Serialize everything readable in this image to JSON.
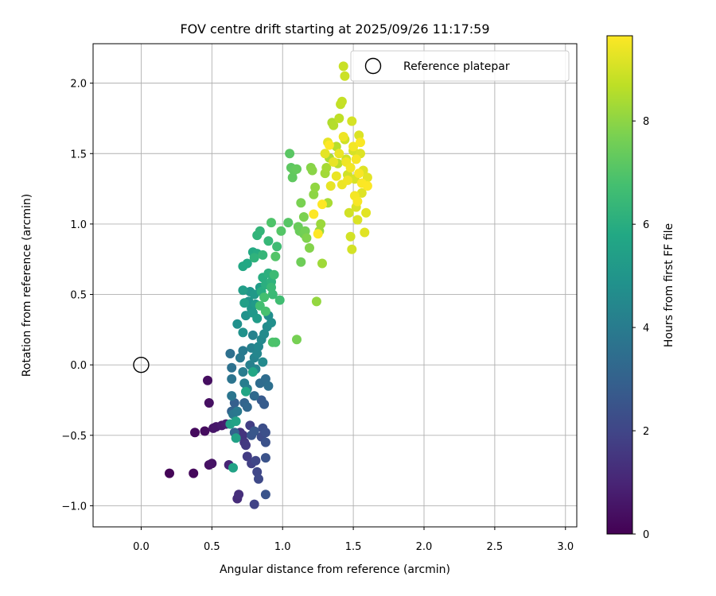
{
  "chart_data": {
    "type": "scatter",
    "title": "FOV centre drift starting at 2025/09/26 11:17:59",
    "xlabel": "Angular distance from reference (arcmin)",
    "ylabel": "Rotation from reference (arcmin)",
    "xlim": [
      -0.34,
      3.08
    ],
    "ylim": [
      -1.15,
      2.28
    ],
    "xticks": [
      0.0,
      0.5,
      1.0,
      1.5,
      2.0,
      2.5,
      3.0
    ],
    "xtick_labels": [
      "0.0",
      "0.5",
      "1.0",
      "1.5",
      "2.0",
      "2.5",
      "3.0"
    ],
    "yticks": [
      -1.0,
      -0.5,
      0.0,
      0.5,
      1.0,
      1.5,
      2.0
    ],
    "ytick_labels": [
      "−1.0",
      "−0.5",
      "0.0",
      "0.5",
      "1.0",
      "1.5",
      "2.0"
    ],
    "grid": true,
    "legend": {
      "position": "top-right",
      "entries": [
        {
          "label": "Reference platepar",
          "marker": "open-circle"
        }
      ]
    },
    "reference_point": {
      "x": 0.0,
      "y": 0.0,
      "label": "Reference platepar"
    },
    "colorbar": {
      "label": "Hours from first FF file",
      "colormap": "viridis",
      "range": [
        0,
        9.65
      ],
      "ticks": [
        0,
        2,
        4,
        6,
        8
      ],
      "tick_labels": [
        "0",
        "2",
        "4",
        "6",
        "8"
      ]
    },
    "series": [
      {
        "name": "FOV centre drift",
        "points": [
          [
            0.2,
            -0.77,
            0.1
          ],
          [
            0.37,
            -0.77,
            0.2
          ],
          [
            0.38,
            -0.48,
            0.25
          ],
          [
            0.45,
            -0.47,
            0.3
          ],
          [
            0.47,
            -0.11,
            0.35
          ],
          [
            0.48,
            -0.27,
            0.4
          ],
          [
            0.48,
            -0.71,
            0.45
          ],
          [
            0.5,
            -0.7,
            0.5
          ],
          [
            0.51,
            -0.45,
            0.55
          ],
          [
            0.53,
            -0.44,
            0.6
          ],
          [
            0.57,
            -0.43,
            0.7
          ],
          [
            0.6,
            -0.42,
            0.8
          ],
          [
            0.62,
            -0.71,
            1.0
          ],
          [
            0.68,
            -0.95,
            1.2
          ],
          [
            0.69,
            -0.92,
            1.3
          ],
          [
            0.7,
            -0.48,
            1.4
          ],
          [
            0.72,
            -0.5,
            1.45
          ],
          [
            0.73,
            -0.55,
            1.5
          ],
          [
            0.74,
            -0.57,
            1.6
          ],
          [
            0.75,
            -0.65,
            1.7
          ],
          [
            0.77,
            -0.43,
            1.75
          ],
          [
            0.78,
            -0.7,
            1.8
          ],
          [
            0.8,
            -0.99,
            1.9
          ],
          [
            0.81,
            -0.68,
            2.0
          ],
          [
            0.82,
            -0.76,
            2.05
          ],
          [
            0.83,
            -0.81,
            2.1
          ],
          [
            0.85,
            -0.51,
            2.2
          ],
          [
            0.86,
            -0.45,
            2.3
          ],
          [
            0.88,
            -0.48,
            2.35
          ],
          [
            0.88,
            -0.55,
            2.4
          ],
          [
            0.88,
            -0.66,
            2.45
          ],
          [
            0.88,
            -0.92,
            2.5
          ],
          [
            0.78,
            -0.5,
            2.55
          ],
          [
            0.8,
            -0.47,
            2.6
          ],
          [
            0.85,
            -0.25,
            2.7
          ],
          [
            0.87,
            -0.28,
            2.8
          ],
          [
            0.66,
            -0.27,
            2.9
          ],
          [
            0.64,
            -0.33,
            3.0
          ],
          [
            0.66,
            -0.48,
            3.05
          ],
          [
            0.73,
            -0.27,
            3.1
          ],
          [
            0.75,
            -0.3,
            3.2
          ],
          [
            0.8,
            -0.22,
            3.3
          ],
          [
            0.84,
            -0.13,
            3.4
          ],
          [
            0.88,
            -0.1,
            3.45
          ],
          [
            0.9,
            -0.15,
            3.5
          ],
          [
            0.63,
            0.08,
            3.55
          ],
          [
            0.64,
            -0.02,
            3.6
          ],
          [
            0.64,
            -0.1,
            3.7
          ],
          [
            0.64,
            -0.22,
            3.75
          ],
          [
            0.65,
            -0.35,
            3.8
          ],
          [
            0.68,
            -0.33,
            3.85
          ],
          [
            0.7,
            0.05,
            3.9
          ],
          [
            0.72,
            0.1,
            3.95
          ],
          [
            0.72,
            -0.05,
            4.0
          ],
          [
            0.73,
            -0.13,
            4.05
          ],
          [
            0.75,
            -0.17,
            4.1
          ],
          [
            0.77,
            0.0,
            4.15
          ],
          [
            0.78,
            0.12,
            4.2
          ],
          [
            0.79,
            0.21,
            4.25
          ],
          [
            0.8,
            0.05,
            4.3
          ],
          [
            0.81,
            -0.03,
            4.35
          ],
          [
            0.82,
            0.08,
            4.4
          ],
          [
            0.83,
            0.13,
            4.45
          ],
          [
            0.85,
            0.18,
            4.5
          ],
          [
            0.86,
            0.02,
            4.55
          ],
          [
            0.87,
            0.22,
            4.6
          ],
          [
            0.89,
            0.27,
            4.65
          ],
          [
            0.9,
            0.35,
            4.7
          ],
          [
            0.92,
            0.3,
            4.75
          ],
          [
            0.68,
            0.29,
            4.8
          ],
          [
            0.72,
            0.23,
            4.85
          ],
          [
            0.74,
            0.35,
            4.9
          ],
          [
            0.76,
            0.45,
            4.95
          ],
          [
            0.77,
            0.52,
            5.0
          ],
          [
            0.78,
            0.4,
            5.05
          ],
          [
            0.79,
            0.37,
            5.1
          ],
          [
            0.8,
            0.5,
            5.15
          ],
          [
            0.81,
            0.43,
            5.2
          ],
          [
            0.82,
            0.33,
            5.25
          ],
          [
            0.84,
            0.55,
            5.3
          ],
          [
            0.72,
            0.53,
            5.35
          ],
          [
            0.73,
            0.44,
            5.4
          ],
          [
            0.63,
            -0.42,
            5.45
          ],
          [
            0.67,
            -0.52,
            5.5
          ],
          [
            0.65,
            -0.73,
            5.55
          ],
          [
            0.67,
            -0.4,
            5.6
          ],
          [
            0.74,
            -0.19,
            5.65
          ],
          [
            0.79,
            -0.05,
            5.7
          ],
          [
            0.72,
            0.7,
            5.75
          ],
          [
            0.75,
            0.72,
            5.8
          ],
          [
            0.79,
            0.8,
            5.85
          ],
          [
            0.82,
            0.79,
            5.9
          ],
          [
            0.85,
            0.52,
            5.95
          ],
          [
            0.86,
            0.62,
            6.0
          ],
          [
            0.88,
            0.57,
            6.05
          ],
          [
            0.9,
            0.65,
            6.1
          ],
          [
            0.92,
            0.59,
            6.15
          ],
          [
            0.8,
            0.76,
            6.2
          ],
          [
            0.82,
            0.92,
            6.25
          ],
          [
            0.84,
            0.95,
            6.3
          ],
          [
            0.86,
            0.78,
            6.35
          ],
          [
            0.9,
            0.88,
            6.4
          ],
          [
            0.92,
            0.55,
            6.45
          ],
          [
            0.93,
            0.5,
            6.5
          ],
          [
            0.94,
            0.64,
            6.55
          ],
          [
            0.96,
            0.84,
            6.6
          ],
          [
            0.98,
            0.46,
            6.65
          ],
          [
            0.84,
            0.42,
            6.7
          ],
          [
            0.87,
            0.48,
            6.75
          ],
          [
            0.88,
            0.38,
            6.8
          ],
          [
            0.95,
            0.16,
            6.85
          ],
          [
            0.93,
            0.16,
            6.9
          ],
          [
            0.92,
            1.01,
            6.95
          ],
          [
            0.95,
            0.77,
            7.0
          ],
          [
            0.99,
            0.95,
            7.05
          ],
          [
            1.04,
            1.01,
            7.1
          ],
          [
            1.05,
            1.5,
            7.15
          ],
          [
            1.06,
            1.4,
            7.2
          ],
          [
            1.07,
            1.33,
            7.25
          ],
          [
            1.08,
            1.38,
            7.3
          ],
          [
            1.1,
            1.39,
            7.35
          ],
          [
            1.11,
            0.98,
            7.4
          ],
          [
            1.12,
            0.95,
            7.45
          ],
          [
            1.13,
            0.73,
            7.5
          ],
          [
            1.15,
            0.93,
            7.55
          ],
          [
            1.16,
            0.95,
            7.6
          ],
          [
            1.1,
            0.18,
            7.65
          ],
          [
            1.13,
            1.15,
            7.7
          ],
          [
            1.15,
            1.05,
            7.75
          ],
          [
            1.17,
            0.9,
            7.8
          ],
          [
            1.19,
            0.83,
            7.85
          ],
          [
            1.2,
            1.4,
            7.9
          ],
          [
            1.21,
            1.38,
            7.95
          ],
          [
            1.22,
            1.21,
            8.0
          ],
          [
            1.23,
            1.26,
            8.05
          ],
          [
            1.24,
            0.45,
            8.1
          ],
          [
            1.26,
            0.95,
            8.15
          ],
          [
            1.27,
            1.0,
            8.2
          ],
          [
            1.28,
            0.72,
            8.25
          ],
          [
            1.3,
            1.36,
            8.3
          ],
          [
            1.31,
            1.4,
            8.35
          ],
          [
            1.32,
            1.15,
            8.4
          ],
          [
            1.33,
            1.47,
            8.45
          ],
          [
            1.35,
            1.72,
            8.5
          ],
          [
            1.36,
            1.7,
            8.55
          ],
          [
            1.38,
            1.55,
            8.6
          ],
          [
            1.39,
            1.43,
            8.65
          ],
          [
            1.4,
            1.75,
            8.7
          ],
          [
            1.41,
            1.85,
            8.75
          ],
          [
            1.42,
            1.87,
            8.8
          ],
          [
            1.43,
            2.12,
            8.85
          ],
          [
            1.44,
            2.05,
            8.9
          ],
          [
            1.44,
            1.6,
            8.92
          ],
          [
            1.45,
            1.46,
            8.94
          ],
          [
            1.46,
            1.35,
            8.96
          ],
          [
            1.47,
            1.08,
            8.98
          ],
          [
            1.48,
            0.91,
            9.0
          ],
          [
            1.49,
            0.82,
            9.02
          ],
          [
            1.49,
            1.73,
            9.04
          ],
          [
            1.5,
            1.52,
            9.06
          ],
          [
            1.51,
            1.32,
            9.08
          ],
          [
            1.52,
            1.12,
            9.1
          ],
          [
            1.53,
            1.03,
            9.12
          ],
          [
            1.54,
            1.63,
            9.14
          ],
          [
            1.55,
            1.5,
            9.16
          ],
          [
            1.56,
            1.22,
            9.18
          ],
          [
            1.57,
            1.38,
            9.2
          ],
          [
            1.58,
            0.94,
            9.22
          ],
          [
            1.59,
            1.08,
            9.24
          ],
          [
            1.6,
            1.33,
            9.26
          ],
          [
            1.3,
            1.5,
            9.28
          ],
          [
            1.32,
            1.58,
            9.3
          ],
          [
            1.34,
            1.27,
            9.32
          ],
          [
            1.36,
            1.44,
            9.34
          ],
          [
            1.38,
            1.34,
            9.36
          ],
          [
            1.4,
            1.5,
            9.38
          ],
          [
            1.42,
            1.28,
            9.4
          ],
          [
            1.43,
            1.62,
            9.42
          ],
          [
            1.45,
            1.44,
            9.44
          ],
          [
            1.46,
            1.31,
            9.46
          ],
          [
            1.48,
            1.4,
            9.48
          ],
          [
            1.5,
            1.55,
            9.5
          ],
          [
            1.51,
            1.2,
            9.52
          ],
          [
            1.52,
            1.46,
            9.54
          ],
          [
            1.53,
            1.16,
            9.56
          ],
          [
            1.54,
            1.36,
            9.58
          ],
          [
            1.55,
            1.58,
            9.6
          ],
          [
            1.56,
            1.29,
            9.62
          ],
          [
            1.6,
            1.27,
            9.63
          ],
          [
            1.22,
            1.07,
            9.64
          ],
          [
            1.25,
            0.93,
            9.65
          ],
          [
            1.28,
            1.14,
            9.65
          ],
          [
            1.33,
            1.56,
            9.65
          ]
        ]
      }
    ]
  }
}
